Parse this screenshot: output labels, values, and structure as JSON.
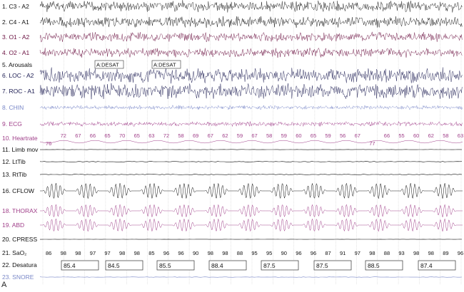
{
  "panel_letter": "A",
  "channels": [
    {
      "label": "1. C3 - A2",
      "color": "#111111"
    },
    {
      "label": "2. C4 - A1",
      "color": "#111111"
    },
    {
      "label": "3. O1 - A2",
      "color": "#6a1040"
    },
    {
      "label": "4. O2 - A1",
      "color": "#6a1040"
    },
    {
      "label": "5. Arousals",
      "color": "#111111"
    },
    {
      "label": "6. LOC - A2",
      "color": "#1a1a50"
    },
    {
      "label": "7. ROC - A1",
      "color": "#1a1a50"
    },
    {
      "label": "8. CHIN",
      "color": "#7a88c8"
    },
    {
      "label": "9. ECG",
      "color": "#a0408a"
    },
    {
      "label": "10. Heartrate",
      "color": "#a0408a"
    },
    {
      "label": "11. Limb mov",
      "color": "#111111"
    },
    {
      "label": "12. LtTib",
      "color": "#111111"
    },
    {
      "label": "13. RtTib",
      "color": "#111111"
    },
    {
      "label": "16. CFLOW",
      "color": "#111111"
    },
    {
      "label": "18. THORAX",
      "color": "#a0408a"
    },
    {
      "label": "19. ABD",
      "color": "#a0408a"
    },
    {
      "label": "20. CPRESS",
      "color": "#111111"
    },
    {
      "label": "21. SaO₂",
      "color": "#111111"
    },
    {
      "label": "22. Desatura",
      "color": "#111111"
    },
    {
      "label": "23. SNORE",
      "color": "#7a88c8"
    }
  ],
  "arousal_events": [
    "A:DESAT",
    "A:DESAT"
  ],
  "heartrate_values": [
    "76",
    "72",
    "67",
    "66",
    "65",
    "70",
    "65",
    "63",
    "72",
    "58",
    "69",
    "67",
    "62",
    "59",
    "67",
    "58",
    "59",
    "60",
    "65",
    "59",
    "56",
    "67",
    "77",
    "66",
    "55",
    "60",
    "62",
    "58",
    "63"
  ],
  "sao2_values": [
    "86",
    "98",
    "98",
    "97",
    "97",
    "98",
    "98",
    "85",
    "96",
    "96",
    "90",
    "98",
    "98",
    "88",
    "95",
    "95",
    "90",
    "96",
    "96",
    "87",
    "91",
    "97",
    "98",
    "88",
    "93",
    "98",
    "98",
    "89",
    "96"
  ],
  "desaturation_values": [
    "85.4",
    "84.5",
    "85.5",
    "88.4",
    "87.5",
    "87.5",
    "88.5",
    "87.4"
  ]
}
